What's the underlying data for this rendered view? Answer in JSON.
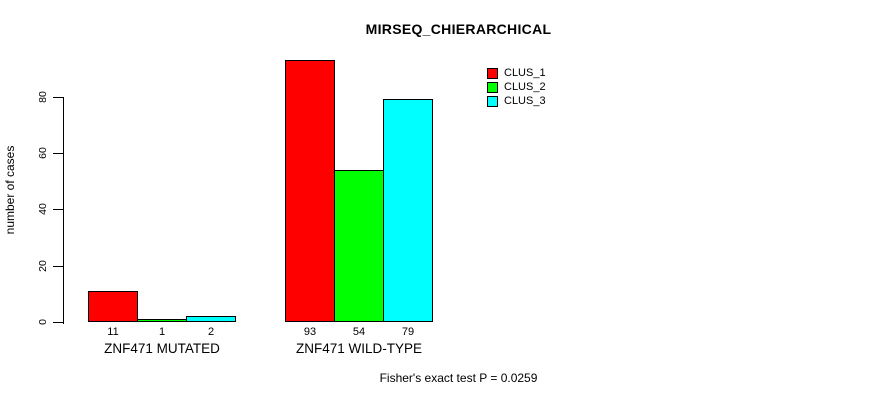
{
  "title": "MIRSEQ_CHIERARCHICAL",
  "footer": {
    "caption": "Fisher's exact test P = 0.0259"
  },
  "y_axis": {
    "label": "number of cases"
  },
  "colors": {
    "background": "#ffffff",
    "axis": "#000000",
    "text": "#000000"
  },
  "chart_data": {
    "type": "bar",
    "title": "MIRSEQ_CHIERARCHICAL",
    "categories": [
      "ZNF471 MUTATED",
      "ZNF471 WILD-TYPE"
    ],
    "series": [
      {
        "name": "CLUS_1",
        "color": "#ff0000",
        "values": [
          11,
          93
        ]
      },
      {
        "name": "CLUS_2",
        "color": "#00ff00",
        "values": [
          1,
          54
        ]
      },
      {
        "name": "CLUS_3",
        "color": "#00ffff",
        "values": [
          2,
          79
        ]
      }
    ],
    "bar_value_labels_shown": true,
    "xlabel": "",
    "ylabel": "number of cases",
    "ylim": [
      0,
      93
    ],
    "yticks": [
      0,
      20,
      40,
      60,
      80
    ],
    "legend_position": "top-right",
    "legend_entries": [
      "CLUS_1",
      "CLUS_2",
      "CLUS_3"
    ],
    "grid": false,
    "bar_border_color": "#000000",
    "annotation": "Fisher's exact test P = 0.0259"
  }
}
